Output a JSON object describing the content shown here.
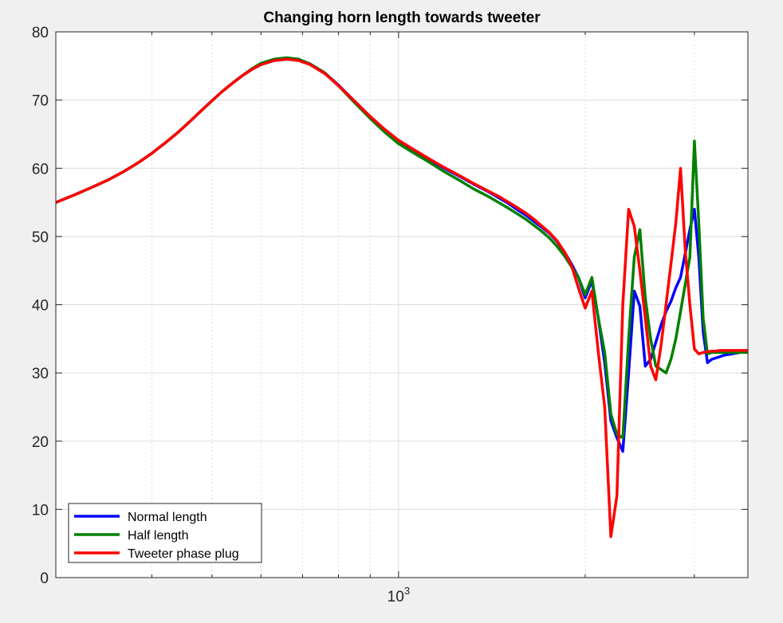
{
  "chart_data": {
    "type": "line",
    "title": "Changing horn length towards tweeter",
    "xlabel": "",
    "ylabel": "",
    "x_scale": "log",
    "xlim": [
      280,
      3660
    ],
    "ylim": [
      0,
      80
    ],
    "y_ticks": [
      0,
      10,
      20,
      30,
      40,
      50,
      60,
      70,
      80
    ],
    "x_major_ticks": [
      1000
    ],
    "x_tick_labels": [
      {
        "base": "10",
        "exp": "3"
      }
    ],
    "x_minor_grid": [
      400,
      500,
      600,
      700,
      800,
      900,
      2000,
      3000
    ],
    "grid": true,
    "legend_position": "bottom-left",
    "colors": {
      "background": "#f0f0f0",
      "axes": "#ffffff",
      "grid": "#dcdcdc",
      "axis_line": "#262626"
    },
    "series": [
      {
        "name": "Normal length",
        "color": "#0000ff",
        "x": [
          280,
          300,
          320,
          340,
          360,
          380,
          400,
          420,
          440,
          460,
          480,
          500,
          520,
          540,
          560,
          580,
          600,
          630,
          660,
          690,
          720,
          760,
          800,
          850,
          900,
          950,
          1000,
          1060,
          1120,
          1180,
          1250,
          1320,
          1400,
          1450,
          1500,
          1550,
          1600,
          1650,
          1700,
          1750,
          1800,
          1850,
          1900,
          1950,
          2000,
          2050,
          2100,
          2150,
          2200,
          2250,
          2300,
          2350,
          2400,
          2450,
          2500,
          2550,
          2600,
          2650,
          2700,
          2750,
          2800,
          2850,
          2900,
          2950,
          3000,
          3050,
          3100,
          3150,
          3200,
          3250,
          3300,
          3350,
          3400,
          3450,
          3500,
          3550,
          3600,
          3650
        ],
        "y": [
          55.0,
          56.1,
          57.2,
          58.3,
          59.5,
          60.8,
          62.2,
          63.7,
          65.2,
          66.8,
          68.4,
          69.9,
          71.3,
          72.5,
          73.6,
          74.5,
          75.2,
          75.8,
          76.0,
          75.9,
          75.3,
          74.0,
          72.2,
          69.8,
          67.6,
          65.6,
          64.0,
          62.6,
          61.3,
          60.1,
          58.9,
          57.7,
          56.5,
          55.7,
          54.9,
          54.0,
          53.2,
          52.3,
          51.4,
          50.5,
          49.3,
          47.8,
          46.0,
          44.0,
          41.0,
          43.5,
          38.0,
          31.5,
          23.0,
          20.5,
          18.5,
          30.0,
          42.0,
          39.8,
          31.0,
          32.0,
          34.5,
          37.0,
          39.0,
          40.5,
          42.5,
          44.0,
          47.5,
          51.0,
          54.0,
          47.0,
          36.0,
          31.5,
          32.0,
          32.2,
          32.4,
          32.6,
          32.7,
          32.8,
          32.9,
          33.0,
          33.1,
          33.2
        ]
      },
      {
        "name": "Half length",
        "color": "#008000",
        "x": [
          280,
          300,
          320,
          340,
          360,
          380,
          400,
          420,
          440,
          460,
          480,
          500,
          520,
          540,
          560,
          580,
          600,
          630,
          660,
          690,
          720,
          760,
          800,
          850,
          900,
          950,
          1000,
          1060,
          1120,
          1180,
          1250,
          1320,
          1400,
          1450,
          1500,
          1550,
          1600,
          1650,
          1700,
          1750,
          1800,
          1850,
          1900,
          1950,
          2000,
          2050,
          2100,
          2150,
          2200,
          2250,
          2300,
          2350,
          2400,
          2450,
          2500,
          2550,
          2600,
          2650,
          2700,
          2750,
          2800,
          2850,
          2900,
          2950,
          3000,
          3050,
          3100,
          3150,
          3200,
          3250,
          3300,
          3350,
          3400,
          3450,
          3500,
          3550,
          3600,
          3650
        ],
        "y": [
          55.0,
          56.1,
          57.2,
          58.3,
          59.5,
          60.8,
          62.2,
          63.7,
          65.2,
          66.8,
          68.4,
          69.9,
          71.3,
          72.5,
          73.6,
          74.6,
          75.4,
          76.0,
          76.2,
          76.0,
          75.3,
          74.0,
          72.1,
          69.6,
          67.3,
          65.3,
          63.6,
          62.2,
          60.9,
          59.6,
          58.3,
          57.0,
          55.8,
          55.0,
          54.2,
          53.4,
          52.6,
          51.7,
          50.8,
          49.8,
          48.6,
          47.2,
          45.6,
          44.0,
          41.5,
          44.0,
          38.0,
          33.0,
          24.0,
          21.0,
          20.5,
          35.0,
          47.0,
          51.0,
          41.0,
          35.0,
          31.0,
          30.5,
          30.0,
          32.0,
          35.0,
          39.0,
          43.0,
          47.0,
          64.0,
          52.0,
          38.0,
          32.8,
          33.0,
          33.0,
          33.0,
          33.0,
          33.0,
          33.0,
          33.0,
          33.0,
          33.0,
          33.0
        ]
      },
      {
        "name": "Tweeter phase plug",
        "color": "#ff0000",
        "x": [
          280,
          300,
          320,
          340,
          360,
          380,
          400,
          420,
          440,
          460,
          480,
          500,
          520,
          540,
          560,
          580,
          600,
          630,
          660,
          690,
          720,
          760,
          800,
          850,
          900,
          950,
          1000,
          1060,
          1120,
          1180,
          1250,
          1320,
          1400,
          1450,
          1500,
          1550,
          1600,
          1650,
          1700,
          1750,
          1800,
          1850,
          1900,
          1950,
          2000,
          2050,
          2100,
          2150,
          2200,
          2250,
          2300,
          2350,
          2400,
          2450,
          2500,
          2550,
          2600,
          2650,
          2700,
          2750,
          2800,
          2850,
          2900,
          2950,
          3000,
          3050,
          3100,
          3150,
          3200,
          3250,
          3300,
          3350,
          3400,
          3450,
          3500,
          3550,
          3600,
          3650
        ],
        "y": [
          55.0,
          56.1,
          57.2,
          58.3,
          59.5,
          60.8,
          62.2,
          63.7,
          65.2,
          66.8,
          68.4,
          69.9,
          71.3,
          72.5,
          73.6,
          74.5,
          75.2,
          75.8,
          76.0,
          75.8,
          75.2,
          73.9,
          72.1,
          69.8,
          67.6,
          65.7,
          64.1,
          62.7,
          61.4,
          60.2,
          59.0,
          57.8,
          56.6,
          55.9,
          55.1,
          54.3,
          53.5,
          52.6,
          51.6,
          50.6,
          49.4,
          47.8,
          45.8,
          42.5,
          39.5,
          42.0,
          33.0,
          25.0,
          6.0,
          12.0,
          40.0,
          54.0,
          51.5,
          45.0,
          38.0,
          31.0,
          29.0,
          34.0,
          40.0,
          46.0,
          52.0,
          60.0,
          48.0,
          40.0,
          33.5,
          32.8,
          33.0,
          33.1,
          33.2,
          33.2,
          33.3,
          33.3,
          33.3,
          33.3,
          33.3,
          33.3,
          33.3,
          33.3
        ]
      }
    ]
  }
}
